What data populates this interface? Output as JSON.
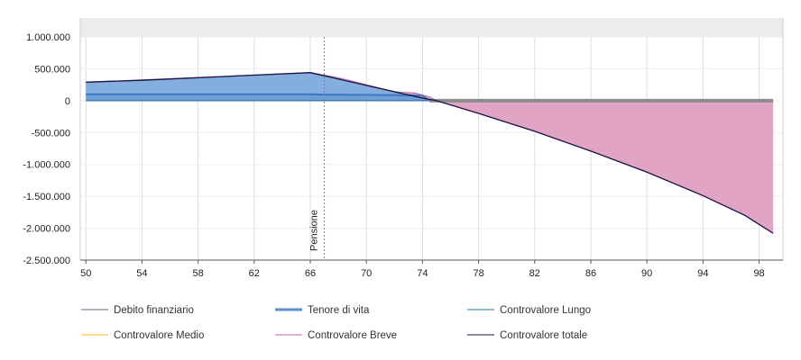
{
  "chart_data": {
    "type": "area",
    "x_ticks": [
      50,
      54,
      58,
      62,
      66,
      70,
      74,
      78,
      82,
      86,
      90,
      94,
      98
    ],
    "y_ticks": [
      1000000,
      500000,
      0,
      -500000,
      -1000000,
      -1500000,
      -2000000,
      -2500000
    ],
    "y_tick_labels": [
      "1.000.000",
      "500.000",
      "0",
      "-500.000",
      "-1.000.000",
      "-1.500.000",
      "-2.000.000",
      "-2.500.000"
    ],
    "xlim": [
      49.6,
      99.7
    ],
    "ylim": [
      -2500000,
      1000000
    ],
    "grid": true,
    "legend_position": "bottom",
    "annotation": {
      "label": "Pensione",
      "x": 67
    },
    "series": [
      {
        "name": "Debito finanziario",
        "color": "#6b5a8e",
        "x": [
          50,
          99
        ],
        "values": [
          0,
          0
        ]
      },
      {
        "name": "Tenore di vita",
        "color": "#4f86c6",
        "x": [
          50,
          66,
          67,
          72,
          74,
          74.5
        ],
        "values": [
          100000,
          100000,
          95000,
          88000,
          80000,
          0
        ]
      },
      {
        "name": "Controvalore Lungo",
        "color": "#1f77b4",
        "x": [
          50,
          74,
          75,
          99
        ],
        "values": [
          0,
          0,
          0,
          0
        ]
      },
      {
        "name": "Controvalore Medio",
        "color": "#f5c518",
        "x": [
          50,
          99
        ],
        "values": [
          0,
          0
        ]
      },
      {
        "name": "Controvalore Breve",
        "color": "#d66ba0",
        "x": [
          50,
          66,
          68,
          72,
          73.5,
          74.5,
          75,
          78,
          82,
          86,
          90,
          94,
          97,
          99
        ],
        "values": [
          290000,
          440000,
          360000,
          140000,
          120000,
          60000,
          0,
          -200000,
          -480000,
          -790000,
          -1120000,
          -1490000,
          -1800000,
          -2080000
        ]
      },
      {
        "name": "Controvalore totale",
        "color": "#1a1446",
        "x": [
          50,
          54,
          58,
          62,
          66,
          68,
          70,
          72,
          74,
          75,
          78,
          82,
          86,
          90,
          94,
          97,
          99
        ],
        "values": [
          290000,
          320000,
          360000,
          400000,
          440000,
          340000,
          240000,
          140000,
          40000,
          0,
          -200000,
          -480000,
          -790000,
          -1120000,
          -1490000,
          -1800000,
          -2080000
        ]
      }
    ]
  },
  "legend": [
    {
      "label": "Debito finanziario",
      "color": "#6b5a8e",
      "thick": false
    },
    {
      "label": "Tenore di vita",
      "color": "#5b8fc9",
      "thick": true
    },
    {
      "label": "Controvalore Lungo",
      "color": "#1f77b4",
      "thick": false
    },
    {
      "label": "Controvalore Medio",
      "color": "#f5c518",
      "thick": false
    },
    {
      "label": "Controvalore Breve",
      "color": "#c76aa8",
      "thick": false
    },
    {
      "label": "Controvalore totale",
      "color": "#1a1446",
      "thick": false
    }
  ]
}
